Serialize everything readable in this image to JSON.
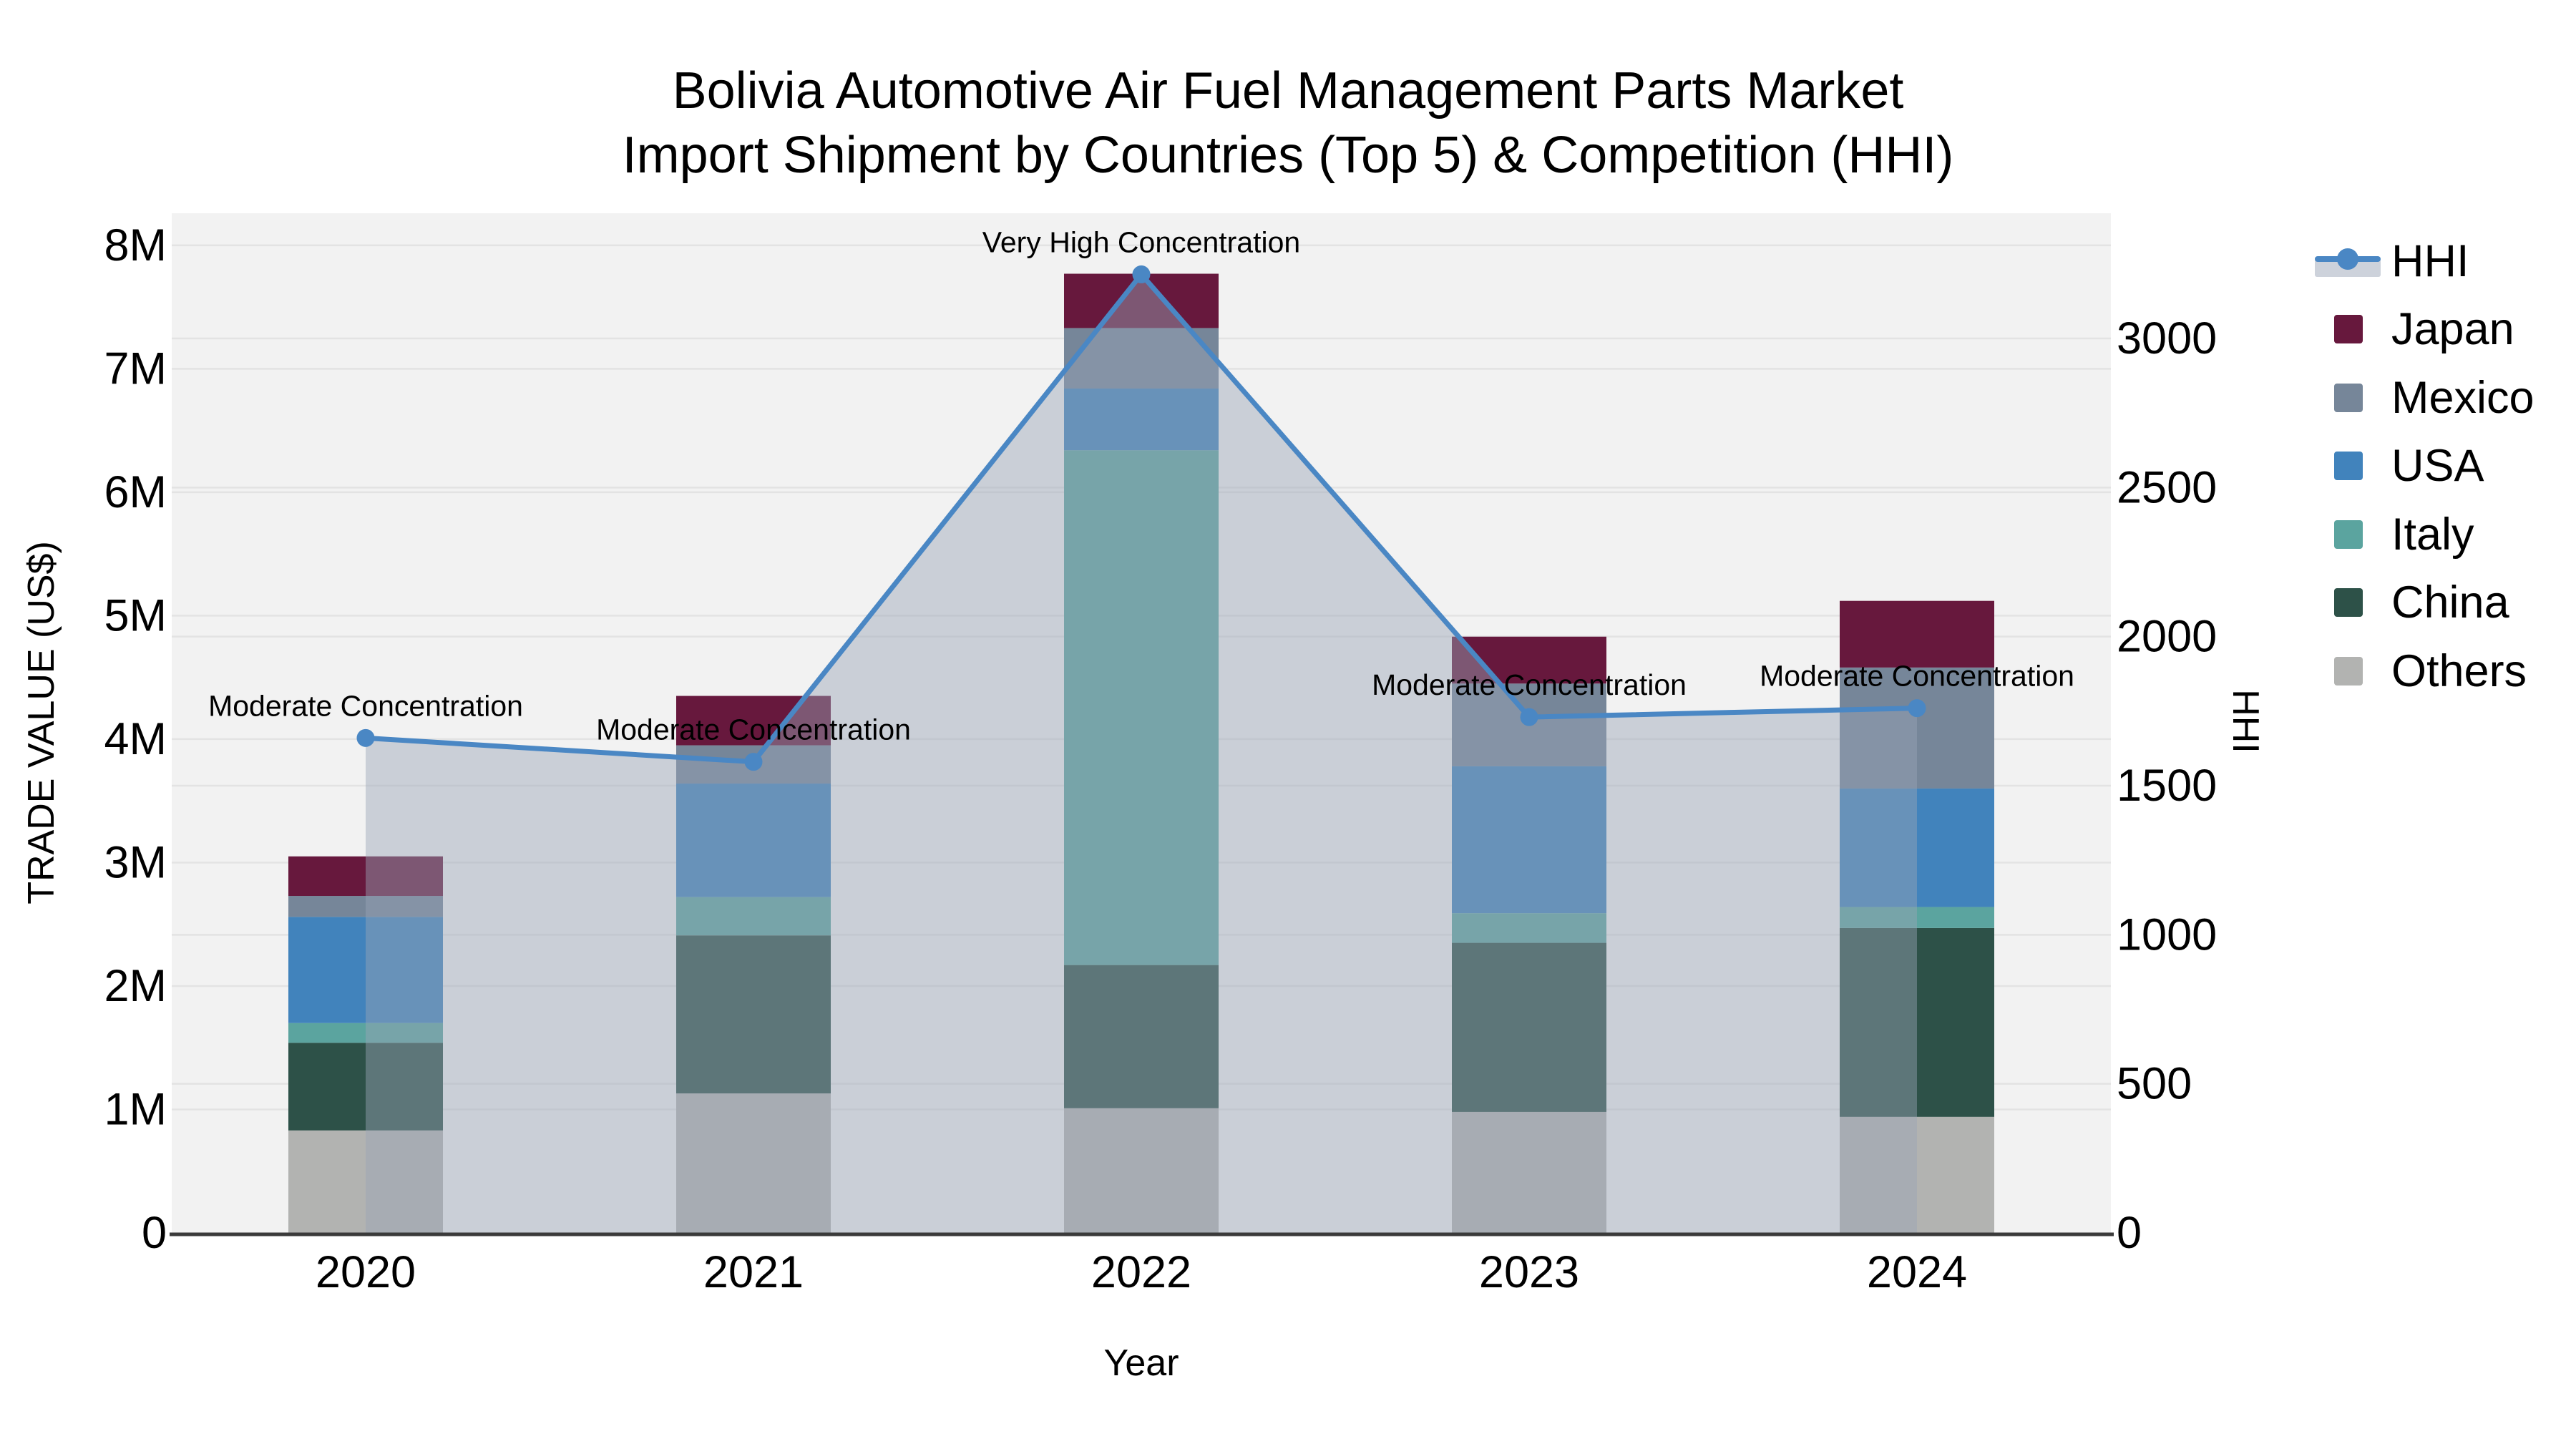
{
  "title": {
    "line1": "Bolivia Automotive Air Fuel Management Parts Market",
    "line2": "Import Shipment by Countries (Top 5) & Competition (HHI)"
  },
  "axes": {
    "x_title": "Year",
    "y_left_title": "TRADE VALUE (US$)",
    "y_right_title": "HHI",
    "x_ticks": [
      "2020",
      "2021",
      "2022",
      "2023",
      "2024"
    ],
    "y_left_ticks": [
      "0",
      "1M",
      "2M",
      "3M",
      "4M",
      "5M",
      "6M",
      "7M",
      "8M"
    ],
    "y_right_ticks": [
      "0",
      "500",
      "1000",
      "1500",
      "2000",
      "2500",
      "3000"
    ]
  },
  "legend": {
    "items": [
      {
        "label": "HHI",
        "type": "line",
        "color": "#4a87c4",
        "band_color": "#cdd2db"
      },
      {
        "label": "Japan",
        "type": "box",
        "color": "#67183d"
      },
      {
        "label": "Mexico",
        "type": "box",
        "color": "#768699"
      },
      {
        "label": "USA",
        "type": "box",
        "color": "#4183bc"
      },
      {
        "label": "Italy",
        "type": "box",
        "color": "#5ba49f"
      },
      {
        "label": "China",
        "type": "box",
        "color": "#2d5148"
      },
      {
        "label": "Others",
        "type": "box",
        "color": "#b2b3b1"
      }
    ]
  },
  "chart_data": {
    "type": "bar",
    "subtypes": [
      "stacked-bar",
      "line-with-area"
    ],
    "title": "Bolivia Automotive Air Fuel Management Parts Market Import Shipment by Countries (Top 5) & Competition (HHI)",
    "xlabel": "Year",
    "ylabel_left": "TRADE VALUE (US$)",
    "ylabel_right": "HHI",
    "categories": [
      2020,
      2021,
      2022,
      2023,
      2024
    ],
    "bar_unit": "million US$",
    "stack_order_bottom_to_top": [
      "Others",
      "China",
      "Italy",
      "USA",
      "Mexico",
      "Japan"
    ],
    "series": [
      {
        "name": "Others",
        "color": "#b2b3b1",
        "values": [
          0.83,
          1.13,
          1.01,
          0.98,
          0.94
        ]
      },
      {
        "name": "China",
        "color": "#2d5148",
        "values": [
          0.71,
          1.28,
          1.16,
          1.37,
          1.53
        ]
      },
      {
        "name": "Italy",
        "color": "#5ba49f",
        "values": [
          0.16,
          0.31,
          4.17,
          0.24,
          0.17
        ]
      },
      {
        "name": "USA",
        "color": "#4183bc",
        "values": [
          0.86,
          0.92,
          0.5,
          1.19,
          0.96
        ]
      },
      {
        "name": "Mexico",
        "color": "#768699",
        "values": [
          0.17,
          0.31,
          0.49,
          0.67,
          0.98
        ]
      },
      {
        "name": "Japan",
        "color": "#67183d",
        "values": [
          0.32,
          0.4,
          0.44,
          0.38,
          0.54
        ]
      }
    ],
    "bar_totals": [
      3.05,
      4.35,
      7.77,
      4.83,
      5.12
    ],
    "line_series": {
      "name": "HHI",
      "axis": "right",
      "color": "#4a87c4",
      "area_fill": "rgba(154,165,182,0.45)",
      "values": [
        1660,
        1580,
        3215,
        1730,
        1760
      ]
    },
    "annotations": [
      {
        "x": 2020,
        "text": "Moderate Concentration"
      },
      {
        "x": 2021,
        "text": "Moderate Concentration"
      },
      {
        "x": 2022,
        "text": "Very High Concentration"
      },
      {
        "x": 2023,
        "text": "Moderate Concentration"
      },
      {
        "x": 2024,
        "text": "Moderate Concentration"
      }
    ],
    "y_left_range": [
      0,
      8.26
    ],
    "y_right_range": [
      0,
      3420
    ],
    "grid": true,
    "plot_bg": "#f2f2f2",
    "grid_color": "#e3e3e3",
    "legend_position": "right"
  }
}
